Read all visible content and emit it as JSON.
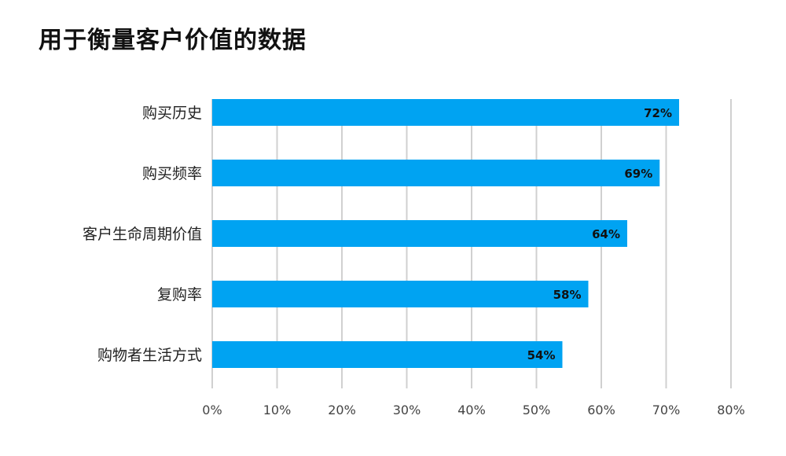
{
  "chart_data": {
    "type": "bar",
    "orientation": "horizontal",
    "title": "用于衡量客户价值的数据",
    "categories": [
      "购买历史",
      "购买频率",
      "客户生命周期价值",
      "复购率",
      "购物者生活方式"
    ],
    "values": [
      72,
      69,
      64,
      58,
      54
    ],
    "data_labels": [
      "72%",
      "69%",
      "64%",
      "58%",
      "54%"
    ],
    "xlim": [
      0,
      80
    ],
    "x_ticks": [
      0,
      10,
      20,
      30,
      40,
      50,
      60,
      70,
      80
    ],
    "x_tick_labels": [
      "0%",
      "10%",
      "20%",
      "30%",
      "40%",
      "50%",
      "60%",
      "70%",
      "80%"
    ],
    "grid": "vertical",
    "bar_color": "#00a3f2",
    "grid_color": "#d0d0d0"
  }
}
